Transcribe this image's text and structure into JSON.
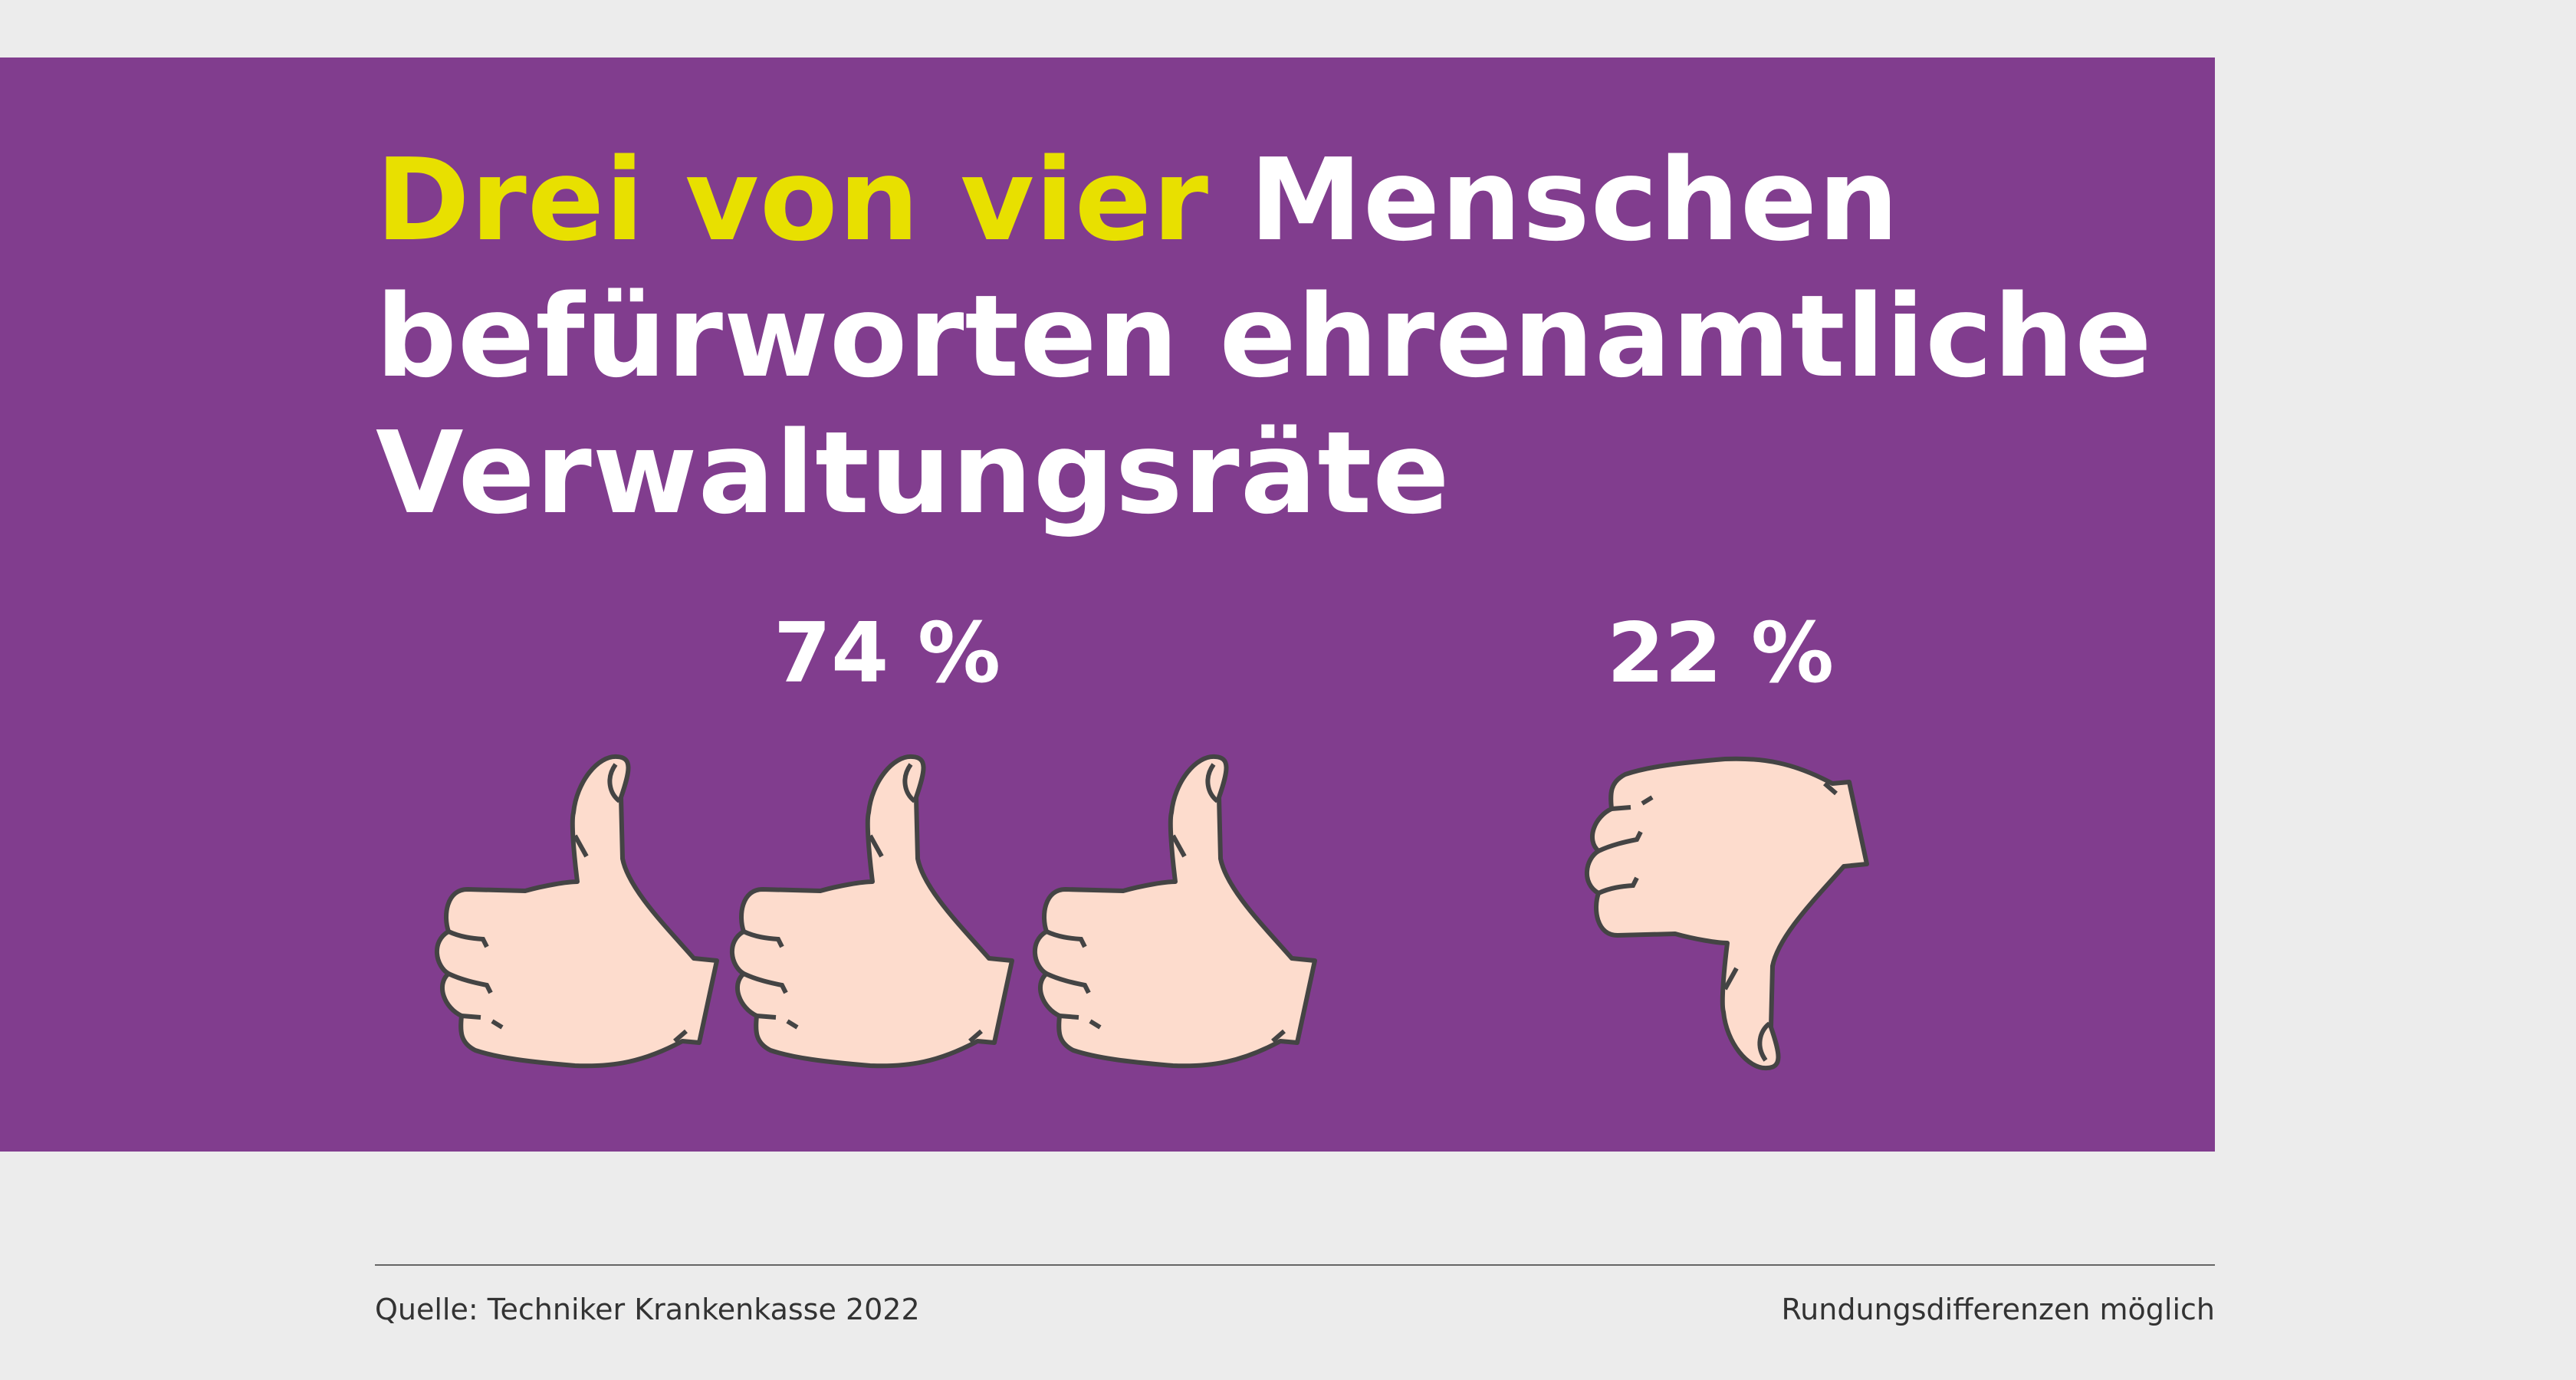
{
  "title": {
    "highlight": "Drei von vier",
    "line1_rest": " Menschen",
    "line2": "befürworten ehrenamtliche",
    "line3": "Verwaltungsräte"
  },
  "stats": [
    {
      "label": "74 %",
      "value": 74,
      "icon": "thumbs-up-icon",
      "icon_count": 3
    },
    {
      "label": "22 %",
      "value": 22,
      "icon": "thumbs-down-icon",
      "icon_count": 1
    }
  ],
  "footer": {
    "source": "Quelle: Techniker Krankenkasse 2022",
    "note": "Rundungsdifferenzen möglich"
  },
  "colors": {
    "panel": "#813d8e",
    "highlight": "#e8e000",
    "background": "#ececec",
    "hand_fill": "#fddccd",
    "hand_stroke": "#444444"
  }
}
